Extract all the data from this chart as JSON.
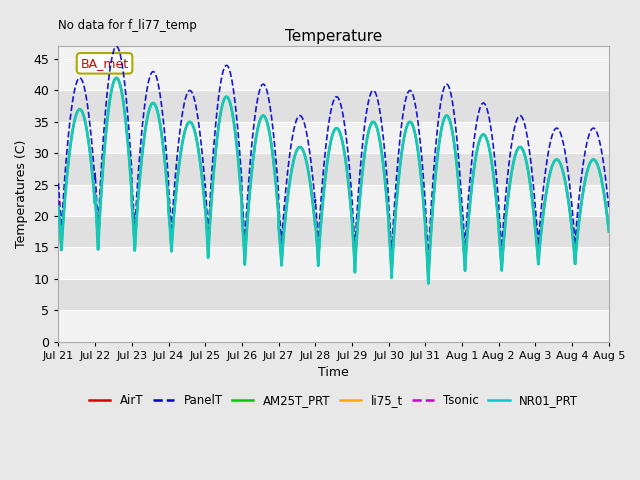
{
  "title": "Temperature",
  "xlabel": "Time",
  "ylabel": "Temperatures (C)",
  "ylim": [
    0,
    47
  ],
  "yticks": [
    0,
    5,
    10,
    15,
    20,
    25,
    30,
    35,
    40,
    45
  ],
  "no_data_text": "No data for f_li77_temp",
  "ba_met_label": "BA_met",
  "legend_entries": [
    {
      "label": "AirT",
      "color": "#dd0000",
      "linestyle": "-",
      "lw": 1.2
    },
    {
      "label": "PanelT",
      "color": "#0000cc",
      "linestyle": "--",
      "lw": 1.2
    },
    {
      "label": "AM25T_PRT",
      "color": "#00cc00",
      "linestyle": "-",
      "lw": 1.5
    },
    {
      "label": "li75_t",
      "color": "#ffaa00",
      "linestyle": "-",
      "lw": 1.5
    },
    {
      "label": "Tsonic",
      "color": "#cc00cc",
      "linestyle": "--",
      "lw": 1.2
    },
    {
      "label": "NR01_PRT",
      "color": "#00cccc",
      "linestyle": "-",
      "lw": 2.0
    }
  ],
  "xtick_labels": [
    "Jul 21",
    "Jul 22",
    "Jul 23",
    "Jul 24",
    "Jul 25",
    "Jul 26",
    "Jul 27",
    "Jul 28",
    "Jul 29",
    "Jul 30",
    "Jul 31",
    "Aug 1",
    "Aug 2",
    "Aug 3",
    "Aug 4",
    "Aug 5"
  ],
  "num_days": 15,
  "day_peak": [
    37,
    42,
    38,
    35,
    39,
    36,
    31,
    34,
    35,
    35,
    36,
    33,
    31,
    29,
    29
  ],
  "day_min": [
    14,
    14,
    14,
    14,
    13,
    12,
    12,
    12,
    11,
    10,
    9,
    11,
    11,
    12,
    12
  ],
  "panel_peak_boost": 5,
  "background_color": "#e8e8e8",
  "plot_bg_light": "#f2f2f2",
  "plot_bg_dark": "#e0e0e0",
  "grid_color": "#ffffff"
}
